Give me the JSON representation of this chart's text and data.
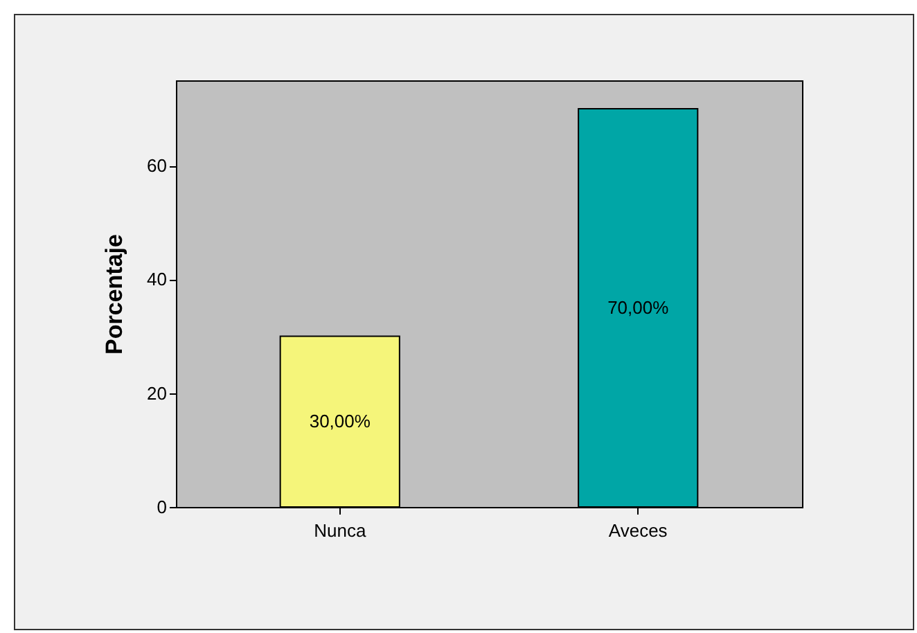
{
  "chart_data": {
    "type": "bar",
    "ylabel": "Porcentaje",
    "categories": [
      "Nunca",
      "Aveces"
    ],
    "values": [
      30,
      70
    ],
    "colors": [
      "#f5f57a",
      "#00a6a6"
    ],
    "value_labels": [
      "30,00%",
      "70,00%"
    ],
    "ylim": [
      0,
      75
    ],
    "yticks": [
      0,
      20,
      40,
      60
    ],
    "grid": false
  }
}
